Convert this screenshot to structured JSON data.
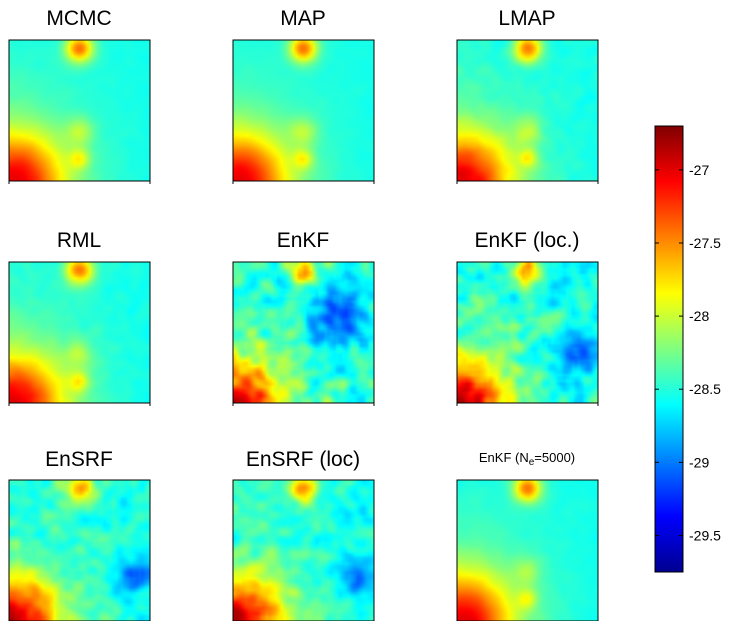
{
  "chart_data": {
    "type": "heatmap",
    "layout": "3x3 grid of field maps with shared colorbar",
    "colormap": "jet",
    "panels": [
      {
        "title": "MCMC",
        "noise": 0.05,
        "blobs": [
          {
            "x": 0.5,
            "y": 0.05,
            "r": 0.1,
            "a": 1.1
          },
          {
            "x": 0.05,
            "y": 1.0,
            "r": 0.34,
            "a": 1.25
          },
          {
            "x": 0.5,
            "y": 0.65,
            "r": 0.1,
            "a": 0.35
          },
          {
            "x": 0.5,
            "y": 0.85,
            "r": 0.07,
            "a": 0.45
          }
        ]
      },
      {
        "title": "MAP",
        "noise": 0.05,
        "blobs": [
          {
            "x": 0.5,
            "y": 0.05,
            "r": 0.1,
            "a": 1.1
          },
          {
            "x": 0.05,
            "y": 1.0,
            "r": 0.34,
            "a": 1.25
          },
          {
            "x": 0.5,
            "y": 0.65,
            "r": 0.1,
            "a": 0.35
          },
          {
            "x": 0.5,
            "y": 0.85,
            "r": 0.07,
            "a": 0.45
          }
        ]
      },
      {
        "title": "LMAP",
        "noise": 0.15,
        "blobs": [
          {
            "x": 0.5,
            "y": 0.05,
            "r": 0.1,
            "a": 1.1
          },
          {
            "x": 0.05,
            "y": 1.0,
            "r": 0.34,
            "a": 1.25
          },
          {
            "x": 0.5,
            "y": 0.65,
            "r": 0.1,
            "a": 0.35
          },
          {
            "x": 0.5,
            "y": 0.85,
            "r": 0.07,
            "a": 0.45
          }
        ]
      },
      {
        "title": "RML",
        "noise": 0.12,
        "blobs": [
          {
            "x": 0.5,
            "y": 0.05,
            "r": 0.1,
            "a": 1.1
          },
          {
            "x": 0.05,
            "y": 1.0,
            "r": 0.34,
            "a": 1.25
          },
          {
            "x": 0.5,
            "y": 0.65,
            "r": 0.1,
            "a": 0.3
          },
          {
            "x": 0.5,
            "y": 0.85,
            "r": 0.07,
            "a": 0.45
          }
        ]
      },
      {
        "title": "EnKF",
        "noise": 0.75,
        "blobs": [
          {
            "x": 0.5,
            "y": 0.05,
            "r": 0.1,
            "a": 1.0
          },
          {
            "x": 0.05,
            "y": 1.0,
            "r": 0.28,
            "a": 1.3
          },
          {
            "x": 0.75,
            "y": 0.4,
            "r": 0.18,
            "a": -0.6
          }
        ]
      },
      {
        "title": "EnKF (loc.)",
        "noise": 0.6,
        "blobs": [
          {
            "x": 0.5,
            "y": 0.05,
            "r": 0.1,
            "a": 1.05
          },
          {
            "x": 0.05,
            "y": 1.0,
            "r": 0.3,
            "a": 1.3
          },
          {
            "x": 0.85,
            "y": 0.65,
            "r": 0.15,
            "a": -0.6
          }
        ]
      },
      {
        "title": "EnSRF",
        "noise": 0.55,
        "blobs": [
          {
            "x": 0.5,
            "y": 0.05,
            "r": 0.1,
            "a": 1.05
          },
          {
            "x": 0.05,
            "y": 1.0,
            "r": 0.3,
            "a": 1.3
          },
          {
            "x": 0.9,
            "y": 0.7,
            "r": 0.14,
            "a": -0.55
          }
        ]
      },
      {
        "title": "EnSRF (loc)",
        "noise": 0.5,
        "blobs": [
          {
            "x": 0.5,
            "y": 0.05,
            "r": 0.1,
            "a": 1.05
          },
          {
            "x": 0.05,
            "y": 1.0,
            "r": 0.3,
            "a": 1.3
          },
          {
            "x": 0.9,
            "y": 0.7,
            "r": 0.14,
            "a": -0.5
          }
        ]
      },
      {
        "title_prefix": "EnKF (N",
        "title_sub": "e",
        "title_suffix": "=5000)",
        "noise": 0.08,
        "blobs": [
          {
            "x": 0.5,
            "y": 0.05,
            "r": 0.1,
            "a": 1.1
          },
          {
            "x": 0.05,
            "y": 1.0,
            "r": 0.34,
            "a": 1.25
          },
          {
            "x": 0.5,
            "y": 0.65,
            "r": 0.1,
            "a": 0.3
          },
          {
            "x": 0.5,
            "y": 0.85,
            "r": 0.07,
            "a": 0.4
          }
        ]
      }
    ],
    "colorbar": {
      "min": -29.75,
      "max": -26.7,
      "ticks": [
        -27,
        -27.5,
        -28,
        -28.5,
        -29,
        -29.5
      ],
      "tick_labels": [
        "-27",
        "-27.5",
        "-28",
        "-28.5",
        "-29",
        "-29.5"
      ]
    },
    "field_base_value": -28.55,
    "field_amplitude": 1.25
  }
}
